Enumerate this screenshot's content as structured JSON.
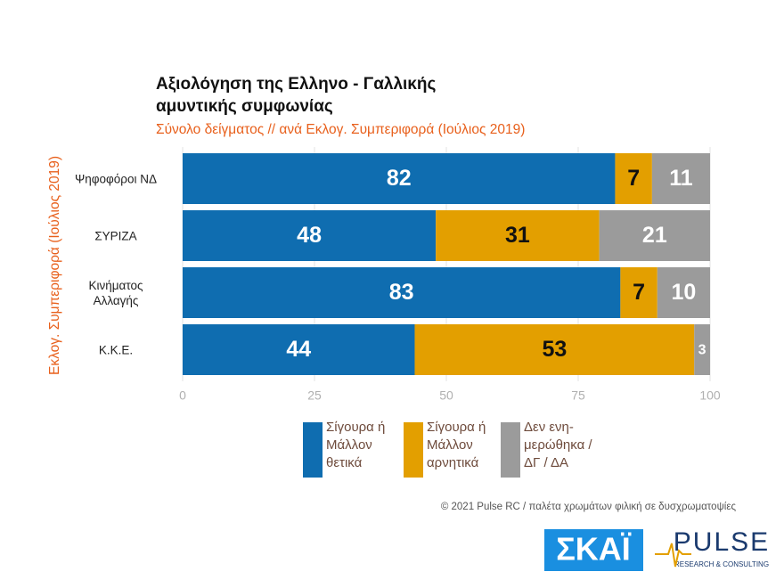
{
  "chart_data": {
    "type": "stacked-bar-horizontal",
    "title": [
      "Αξιολόγηση της Ελληνο - Γαλλικής",
      "αμυντικής συμφωνίας"
    ],
    "subtitle": "Σύνολο δείγματος // ανά Εκλογ. Συμπεριφορά (Ιούλιος 2019)",
    "y_label": "Εκλογ. Συμπεριφορά (Ιούλιος 2019)",
    "categories": [
      "Ψηφοφόροι ΝΔ",
      "ΣΥΡΙΖΑ",
      "Κινήματος Αλλαγής",
      "Κ.Κ.Ε."
    ],
    "series": [
      {
        "name": "Σίγουρα ή Μάλλον θετικά",
        "color": "#0f6db0",
        "label_color": "#ffffff",
        "values": [
          82,
          48,
          83,
          44
        ]
      },
      {
        "name": "Σίγουρα ή Μάλλον αρνητικά",
        "color": "#e39f00",
        "label_color": "#111111",
        "values": [
          7,
          31,
          7,
          53
        ]
      },
      {
        "name": "Δεν ενη-μερώθηκα / ΔΓ / ΔΑ",
        "color": "#9b9b9b",
        "label_color": "#ffffff",
        "values": [
          11,
          21,
          10,
          3
        ]
      }
    ],
    "xlim": [
      0,
      100
    ],
    "xticks": [
      0,
      25,
      50,
      75,
      100
    ],
    "grid": true,
    "source": "© 2021 Pulse RC  /  παλέτα χρωμάτων φιλική σε δυσχρωματοψίες",
    "logos": [
      "ΣΚΑΪ",
      "PULSE",
      "RESEARCH & CONSULTING"
    ]
  }
}
